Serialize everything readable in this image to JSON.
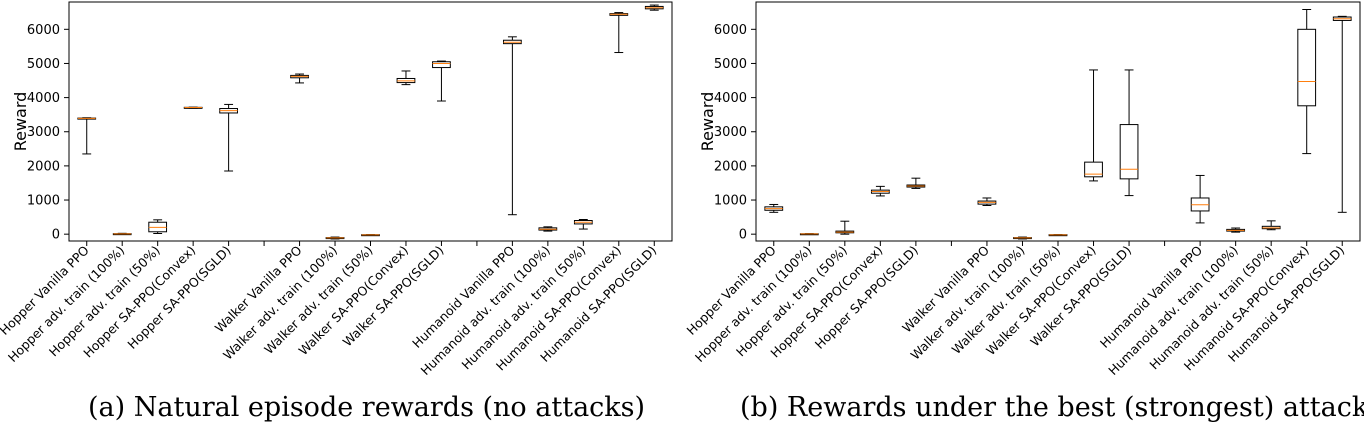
{
  "captions": {
    "a": "(a) Natural episode rewards (no attacks)",
    "b": "(b) Rewards under the best (strongest) attacks"
  },
  "colors": {
    "box": "#000000",
    "median": "#ff7f0e",
    "axes": "#000000"
  },
  "chart_data": [
    {
      "type": "box",
      "title": "(a) Natural episode rewards (no attacks)",
      "ylabel": "Reward",
      "xlabel": "",
      "ylim": [
        -200,
        6800
      ],
      "yticks": [
        0,
        1000,
        2000,
        3000,
        4000,
        5000,
        6000
      ],
      "grid": false,
      "categories": [
        "Hopper Vanilla PPO",
        "Hopper adv. train (100%)",
        "Hopper adv. train (50%)",
        "Hopper SA-PPO(Convex)",
        "Hopper SA-PPO(SGLD)",
        "",
        "Walker Vanilla PPO",
        "Walker adv. train (100%)",
        "Walker adv. train (50%)",
        "Walker SA-PPO(Convex)",
        "Walker SA-PPO(SGLD)",
        "",
        "Humanoid Vanilla PPO",
        "Humanoid adv. train (100%)",
        "Humanoid adv. train (50%)",
        "Humanoid SA-PPO(Convex)",
        "Humanoid SA-PPO(SGLD)"
      ],
      "boxes": [
        {
          "min": 2350,
          "q1": 3370,
          "median": 3390,
          "q3": 3400,
          "max": 3410
        },
        {
          "min": 0,
          "q1": 5,
          "median": 10,
          "q3": 15,
          "max": 25
        },
        {
          "min": 20,
          "q1": 70,
          "median": 200,
          "q3": 350,
          "max": 420
        },
        {
          "min": 3690,
          "q1": 3700,
          "median": 3710,
          "q3": 3715,
          "max": 3720
        },
        {
          "min": 1850,
          "q1": 3550,
          "median": 3620,
          "q3": 3680,
          "max": 3800
        },
        null,
        {
          "min": 4430,
          "q1": 4580,
          "median": 4620,
          "q3": 4650,
          "max": 4690
        },
        {
          "min": -140,
          "q1": -120,
          "median": -110,
          "q3": -100,
          "max": -85
        },
        {
          "min": -35,
          "q1": -25,
          "median": -20,
          "q3": -15,
          "max": -10
        },
        {
          "min": 4380,
          "q1": 4440,
          "median": 4490,
          "q3": 4560,
          "max": 4780
        },
        {
          "min": 3900,
          "q1": 4880,
          "median": 5000,
          "q3": 5050,
          "max": 5070
        },
        null,
        {
          "min": 570,
          "q1": 5580,
          "median": 5620,
          "q3": 5680,
          "max": 5780
        },
        {
          "min": 90,
          "q1": 120,
          "median": 145,
          "q3": 185,
          "max": 215
        },
        {
          "min": 150,
          "q1": 300,
          "median": 350,
          "q3": 400,
          "max": 430
        },
        {
          "min": 5320,
          "q1": 6410,
          "median": 6440,
          "q3": 6460,
          "max": 6490
        },
        {
          "min": 6560,
          "q1": 6600,
          "median": 6630,
          "q3": 6670,
          "max": 6710
        }
      ]
    },
    {
      "type": "box",
      "title": "(b) Rewards under the best (strongest) attacks",
      "ylabel": "Reward",
      "xlabel": "",
      "ylim": [
        -200,
        6800
      ],
      "yticks": [
        0,
        1000,
        2000,
        3000,
        4000,
        5000,
        6000
      ],
      "grid": false,
      "categories": [
        "Hopper Vanilla PPO",
        "Hopper adv. train (100%)",
        "Hopper adv. train (50%)",
        "Hopper SA-PPO(Convex)",
        "Hopper SA-PPO(SGLD)",
        "",
        "Walker Vanilla PPO",
        "Walker adv. train (100%)",
        "Walker adv. train (50%)",
        "Walker SA-PPO(Convex)",
        "Walker SA-PPO(SGLD)",
        "",
        "Humanoid Vanilla PPO",
        "Humanoid adv. train (100%)",
        "Humanoid adv. train (50%)",
        "Humanoid SA-PPO(Convex)",
        "Humanoid SA-PPO(SGLD)"
      ],
      "boxes": [
        {
          "min": 640,
          "q1": 700,
          "median": 750,
          "q3": 800,
          "max": 870
        },
        {
          "min": 0,
          "q1": 5,
          "median": 8,
          "q3": 12,
          "max": 18
        },
        {
          "min": 0,
          "q1": 40,
          "median": 60,
          "q3": 90,
          "max": 380
        },
        {
          "min": 1120,
          "q1": 1200,
          "median": 1250,
          "q3": 1290,
          "max": 1400
        },
        {
          "min": 1340,
          "q1": 1380,
          "median": 1410,
          "q3": 1440,
          "max": 1640
        },
        null,
        {
          "min": 840,
          "q1": 880,
          "median": 930,
          "q3": 970,
          "max": 1060
        },
        {
          "min": -140,
          "q1": -120,
          "median": -110,
          "q3": -100,
          "max": -85
        },
        {
          "min": -35,
          "q1": -25,
          "median": -20,
          "q3": -15,
          "max": -10
        },
        {
          "min": 1560,
          "q1": 1680,
          "median": 1760,
          "q3": 2110,
          "max": 4810
        },
        {
          "min": 1130,
          "q1": 1620,
          "median": 1900,
          "q3": 3210,
          "max": 4810
        },
        null,
        {
          "min": 330,
          "q1": 680,
          "median": 860,
          "q3": 1060,
          "max": 1720
        },
        {
          "min": 60,
          "q1": 90,
          "median": 110,
          "q3": 140,
          "max": 180
        },
        {
          "min": 130,
          "q1": 160,
          "median": 185,
          "q3": 230,
          "max": 390
        },
        {
          "min": 2360,
          "q1": 3760,
          "median": 4470,
          "q3": 6000,
          "max": 6580
        },
        {
          "min": 640,
          "q1": 6260,
          "median": 6310,
          "q3": 6360,
          "max": 6380
        }
      ]
    }
  ]
}
